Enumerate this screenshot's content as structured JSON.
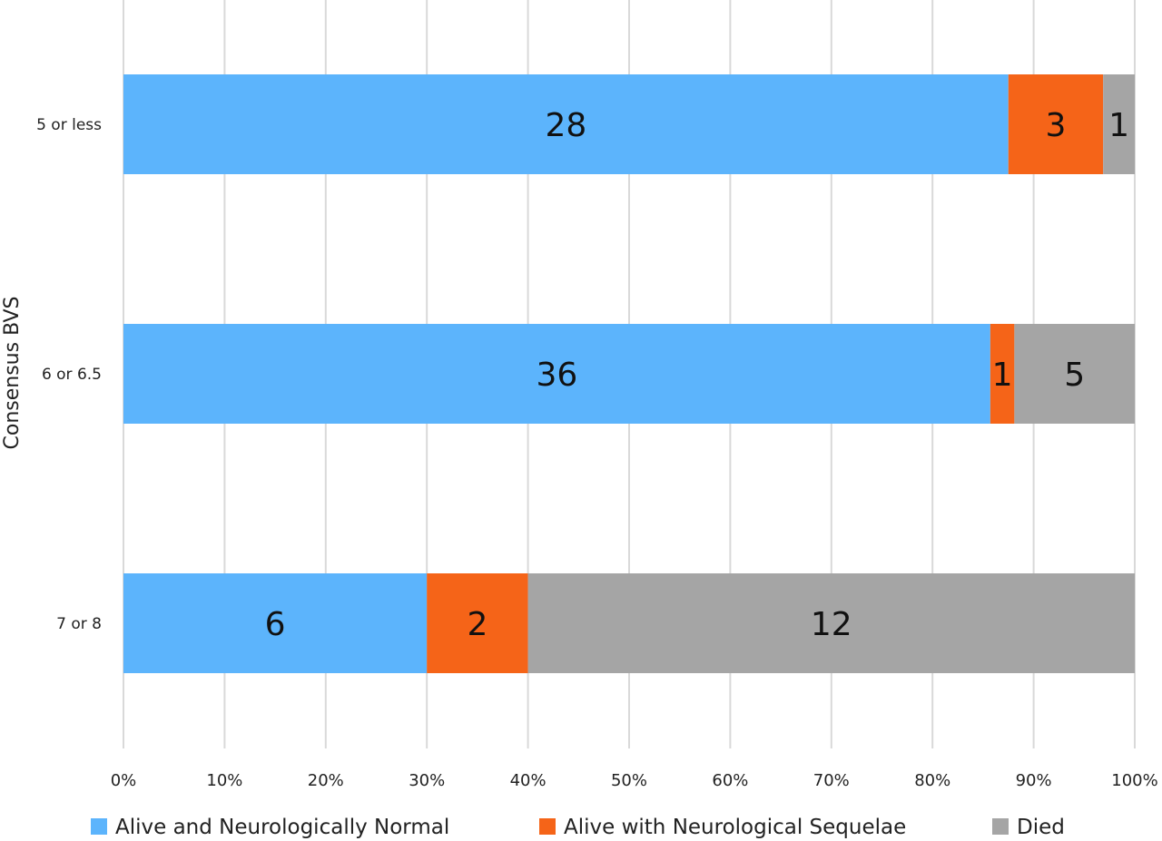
{
  "chart_data": {
    "type": "bar",
    "orientation": "horizontal",
    "stacked": "percent",
    "title": "",
    "xlabel": "",
    "ylabel": "Consensus BVS",
    "categories": [
      "5 or less",
      "6 or 6.5",
      "7 or 8"
    ],
    "x_ticks": [
      "0%",
      "10%",
      "20%",
      "30%",
      "40%",
      "50%",
      "60%",
      "70%",
      "80%",
      "90%",
      "100%"
    ],
    "xlim": [
      0,
      100
    ],
    "grid": "vertical",
    "legend_position": "bottom",
    "series": [
      {
        "name": "Alive and Neurologically Normal",
        "color": "#5cb4fc",
        "values": [
          28,
          36,
          6
        ]
      },
      {
        "name": "Alive with Neurological Sequelae",
        "color": "#f56418",
        "values": [
          3,
          1,
          2
        ]
      },
      {
        "name": "Died",
        "color": "#a5a5a5",
        "values": [
          1,
          5,
          12
        ]
      }
    ]
  }
}
